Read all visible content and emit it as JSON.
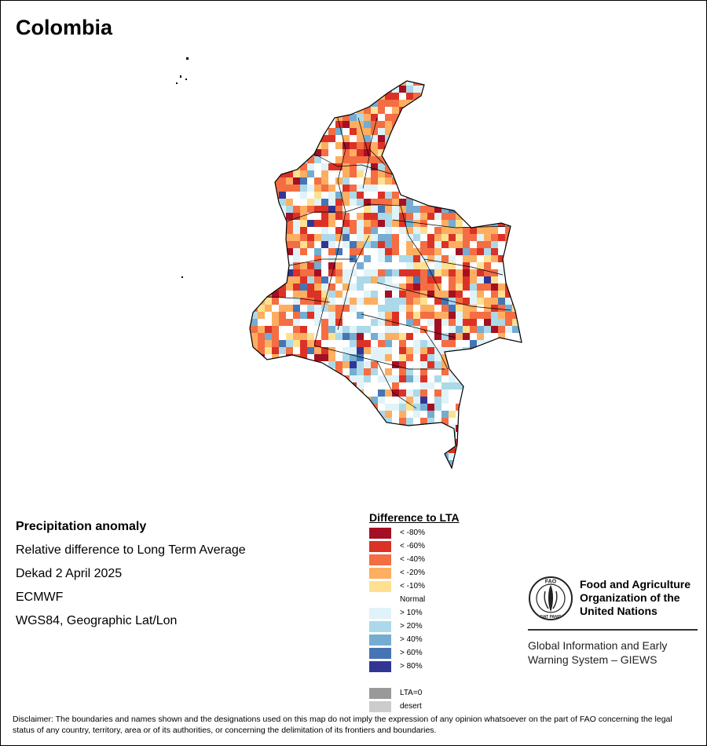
{
  "title": "Colombia",
  "info": {
    "line1": "Precipitation anomaly",
    "line2": "Relative difference to Long Term Average",
    "line3": "Dekad 2 April 2025",
    "line4": "ECMWF",
    "line5": "WGS84, Geographic Lat/Lon"
  },
  "legend": {
    "title": "Difference to LTA",
    "items": [
      {
        "label": "< -80%",
        "color": "#a50f23"
      },
      {
        "label": "< -60%",
        "color": "#dc3226"
      },
      {
        "label": "< -40%",
        "color": "#f46d43"
      },
      {
        "label": "< -20%",
        "color": "#fdae61"
      },
      {
        "label": "< -10%",
        "color": "#fee090"
      },
      {
        "label": "Normal",
        "color": "#ffffff"
      },
      {
        "label": "> 10%",
        "color": "#e0f3f8"
      },
      {
        "label": "> 20%",
        "color": "#abd9e9"
      },
      {
        "label": "> 40%",
        "color": "#74add1"
      },
      {
        "label": "> 60%",
        "color": "#4575b4"
      },
      {
        "label": "> 80%",
        "color": "#313695"
      },
      {
        "label": "",
        "color": ""
      },
      {
        "label": "LTA=0",
        "color": "#999999"
      },
      {
        "label": "desert",
        "color": "#cccccc"
      }
    ]
  },
  "fao": {
    "name_line1": "Food and Agriculture",
    "name_line2": "Organization of the",
    "name_line3": "United Nations",
    "logo_text": "FAO",
    "motto": "FIAT PANIS",
    "giews_line1": "Global Information and Early",
    "giews_line2": "Warning System – GIEWS"
  },
  "disclaimer": "Disclaimer: The boundaries and names shown and the designations used on this map do not imply the expression of any opinion whatsoever on the part of FAO concerning the legal status of any country, territory, area or of its authorities, or concerning the delimitation of its frontiers and boundaries."
}
